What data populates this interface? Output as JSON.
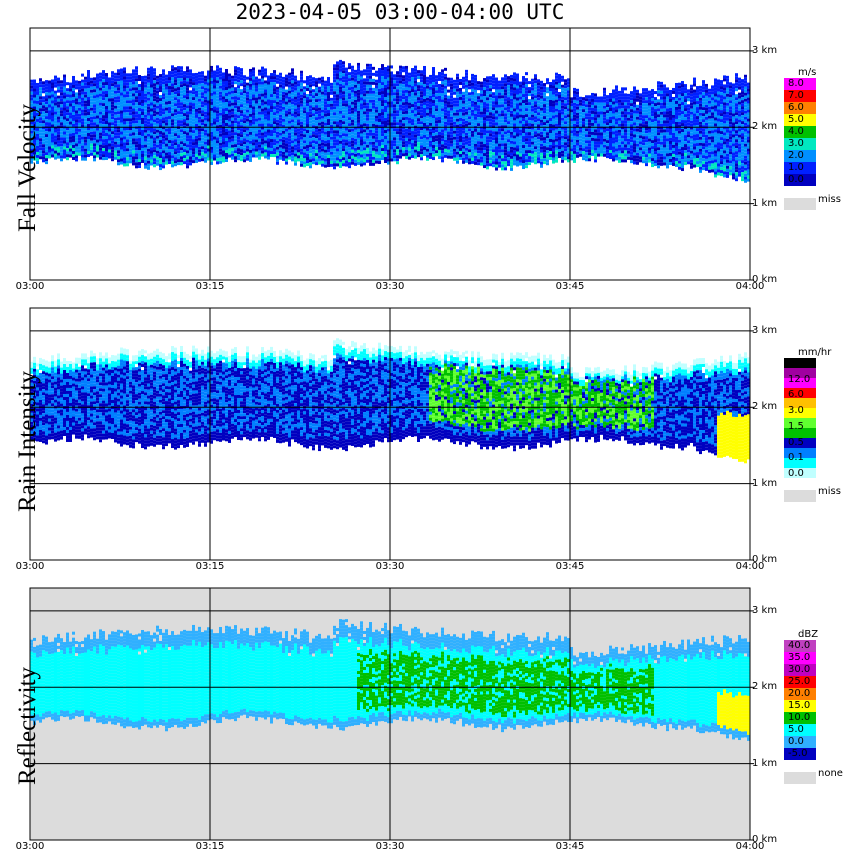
{
  "title": "2023-04-05  03:00-04:00 UTC",
  "chart_data": [
    {
      "type": "heatmap",
      "name": "Fall Velocity",
      "ylabel": "Fall Velocity",
      "xticks": [
        "03:00",
        "03:15",
        "03:30",
        "03:45",
        "04:00"
      ],
      "yticks": [
        "0 km",
        "1 km",
        "2 km",
        "3 km"
      ],
      "ylim_km": [
        0,
        3.3
      ],
      "xlim_min": [
        0,
        60
      ],
      "grid": true,
      "colorbar": {
        "unit": "m/s",
        "levels": [
          "8.0",
          "7.0",
          "6.0",
          "5.0",
          "4.0",
          "3.0",
          "2.0",
          "1.0",
          "0.0"
        ],
        "colors": [
          "#ff00ff",
          "#ff0000",
          "#ff8000",
          "#ffff00",
          "#00c000",
          "#00e8c0",
          "#0090ff",
          "#0020ff",
          "#0000c0"
        ],
        "missing_label": "miss",
        "missing_color": "#dcdcdc"
      },
      "echo_layer": {
        "base_km": 1.55,
        "top_km": 2.6,
        "start_min": 0,
        "end_min": 60
      },
      "background": "#ffffff"
    },
    {
      "type": "heatmap",
      "name": "Rain Intensity",
      "ylabel": "Rain Intensity",
      "xticks": [
        "03:00",
        "03:15",
        "03:30",
        "03:45",
        "04:00"
      ],
      "yticks": [
        "0 km",
        "1 km",
        "2 km",
        "3 km"
      ],
      "ylim_km": [
        0,
        3.3
      ],
      "xlim_min": [
        0,
        60
      ],
      "grid": true,
      "colorbar": {
        "unit": "mm/hr",
        "levels": [
          "48.0",
          "12.0",
          "6.0",
          "3.0",
          "1.5",
          "0.5",
          "0.1",
          "0.0"
        ],
        "colors": [
          "#000000",
          "#a000a0",
          "#ff00ff",
          "#ff0000",
          "#ffc000",
          "#ffff00",
          "#60ff30",
          "#00c000",
          "#0000c0",
          "#0080ff",
          "#00ffff",
          "#c0ffff"
        ],
        "missing_label": "miss",
        "missing_color": "#dcdcdc"
      },
      "echo_layer": {
        "base_km": 1.55,
        "top_km": 2.6,
        "start_min": 0,
        "end_min": 60
      },
      "background": "#ffffff"
    },
    {
      "type": "heatmap",
      "name": "Reflectivity",
      "ylabel": "Reflectivity",
      "xticks": [
        "03:00",
        "03:15",
        "03:30",
        "03:45",
        "04:00"
      ],
      "yticks": [
        "0 km",
        "1 km",
        "2 km",
        "3 km"
      ],
      "ylim_km": [
        0,
        3.3
      ],
      "xlim_min": [
        0,
        60
      ],
      "grid": true,
      "colorbar": {
        "unit": "dBZ",
        "levels": [
          "40.0",
          "35.0",
          "30.0",
          "25.0",
          "20.0",
          "15.0",
          "10.0",
          "5.0",
          "0.0",
          "-5.0"
        ],
        "colors": [
          "#c040c0",
          "#ff00ff",
          "#c000c0",
          "#ff0000",
          "#ff8000",
          "#ffff00",
          "#00c000",
          "#00ffff",
          "#30b0ff",
          "#0000c0"
        ],
        "missing_label": "none",
        "missing_color": "#dcdcdc"
      },
      "echo_layer": {
        "base_km": 1.55,
        "top_km": 2.6,
        "start_min": 0,
        "end_min": 60
      },
      "background": "#dcdcdc"
    }
  ]
}
